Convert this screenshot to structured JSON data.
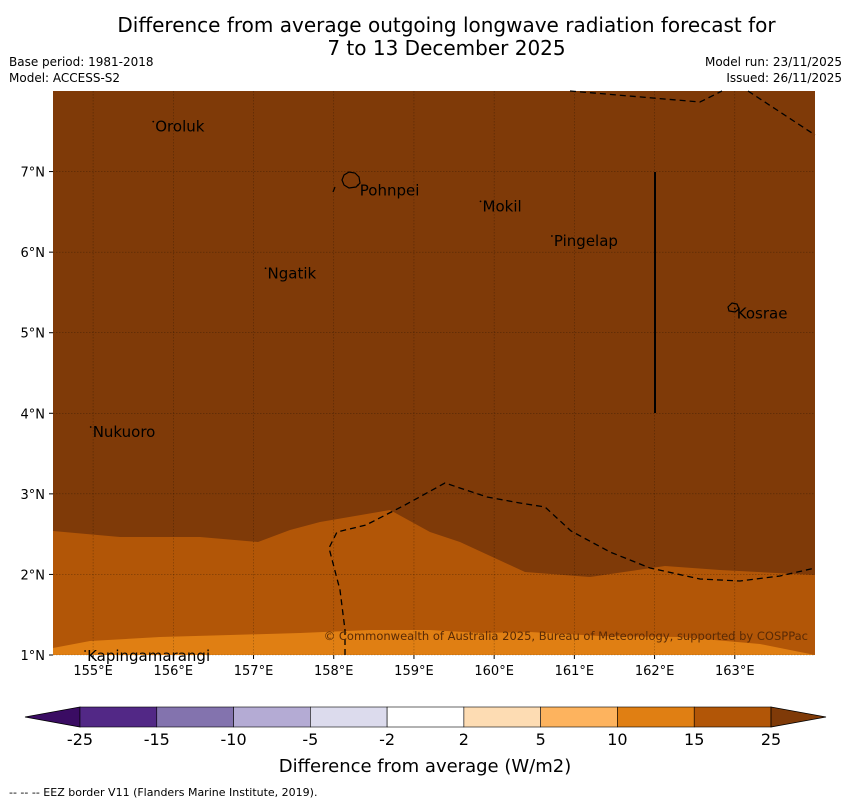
{
  "title": {
    "line1": "Difference from average outgoing longwave radiation forecast for",
    "line2": "7 to 13 December 2025"
  },
  "meta_left": {
    "base_period": "Base period: 1981-2018",
    "model": "Model: ACCESS-S2"
  },
  "meta_right": {
    "model_run": "Model run: 23/11/2025",
    "issued": "Issued: 26/11/2025"
  },
  "map": {
    "lon_range": [
      154.5,
      164.0
    ],
    "lat_range": [
      1.0,
      8.0
    ],
    "lon_ticks": [
      "155°E",
      "156°E",
      "157°E",
      "158°E",
      "159°E",
      "160°E",
      "161°E",
      "162°E",
      "163°E"
    ],
    "lon_tick_values": [
      155,
      156,
      157,
      158,
      159,
      160,
      161,
      162,
      163
    ],
    "lat_ticks": [
      "1°N",
      "2°N",
      "3°N",
      "4°N",
      "5°N",
      "6°N",
      "7°N"
    ],
    "lat_tick_values": [
      1,
      2,
      3,
      4,
      5,
      6,
      7
    ],
    "places": [
      {
        "name": "Oroluk",
        "lon": 155.75,
        "lat": 7.62
      },
      {
        "name": "Pohnpei",
        "lon": 158.3,
        "lat": 6.83
      },
      {
        "name": "Mokil",
        "lon": 159.83,
        "lat": 6.63
      },
      {
        "name": "Pingelap",
        "lon": 160.72,
        "lat": 6.2
      },
      {
        "name": "Ngatik",
        "lon": 157.15,
        "lat": 5.8
      },
      {
        "name": "Kosrae",
        "lon": 163.0,
        "lat": 5.3
      },
      {
        "name": "Nukuoro",
        "lon": 154.97,
        "lat": 3.83
      },
      {
        "name": "Kapingamarangi",
        "lon": 154.9,
        "lat": 1.05
      }
    ],
    "copyright": "© Commonwealth of Australia 2025, Bureau of Meteorology, supported by COSPPac"
  },
  "legend": {
    "colors": {
      "below_min": "#3a0c63",
      "bins": [
        "#522886",
        "#8373ae",
        "#b4abd4",
        "#dcdbed",
        "#ffffff",
        "#fddcb3",
        "#fdb35e",
        "#e07f13",
        "#b25607"
      ],
      "above_max": "#7f3a08"
    },
    "tick_labels": [
      "-25",
      "-15",
      "-10",
      "-5",
      "-2",
      "2",
      "5",
      "10",
      "15",
      "25"
    ],
    "label": "Difference from average (W/m2)"
  },
  "field_colors": {
    "high": "#7f3a08",
    "mid": "#b25607",
    "low": "#e07f13"
  },
  "footer": "--  --  -- EEZ border V11 (Flanders Marine Institute, 2019)."
}
